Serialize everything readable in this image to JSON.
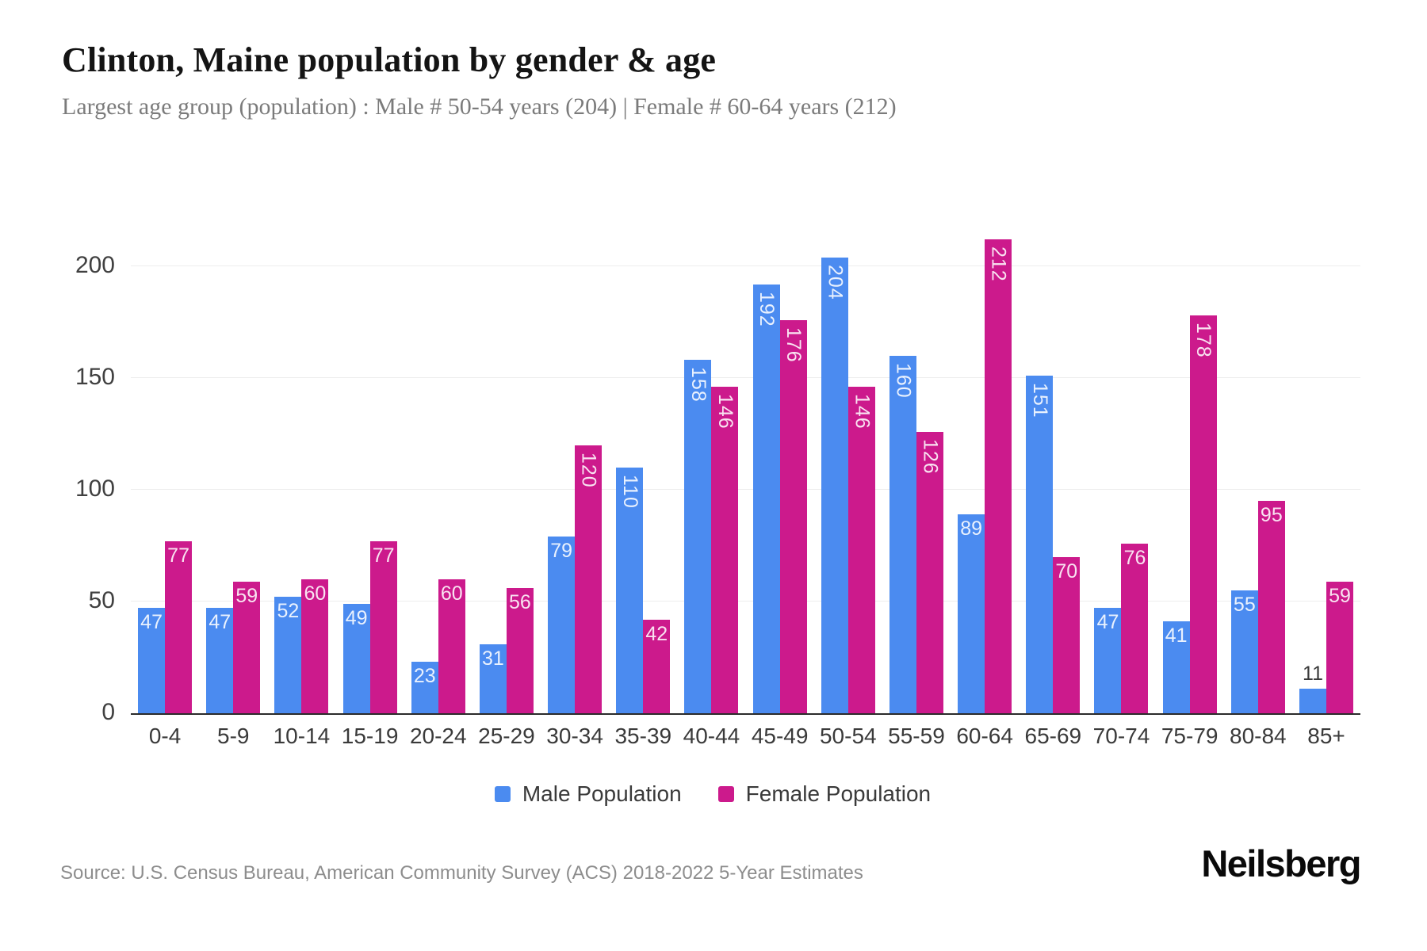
{
  "header": {
    "title": "Clinton, Maine population by gender & age",
    "subtitle": "Largest age group (population) : Male # 50-54 years (204) | Female # 60-64 years (212)"
  },
  "footer": {
    "source": "Source: U.S. Census Bureau, American Community Survey (ACS) 2018-2022 5-Year Estimates",
    "logo": "Neilsberg"
  },
  "colors": {
    "male": "#4b8bf0",
    "female": "#cc1a8c",
    "axis_line": "#2b2b2b",
    "gridline": "#ededed",
    "bar_label_light": "rgba(255,255,255,0.88)",
    "bar_label_dark": "#3a3a3a"
  },
  "chart_data": {
    "type": "bar",
    "title": "Clinton, Maine population by gender & age",
    "xlabel": "",
    "ylabel": "",
    "categories": [
      "0-4",
      "5-9",
      "10-14",
      "15-19",
      "20-24",
      "25-29",
      "30-34",
      "35-39",
      "40-44",
      "45-49",
      "50-54",
      "55-59",
      "60-64",
      "65-69",
      "70-74",
      "75-79",
      "80-84",
      "85+"
    ],
    "series": [
      {
        "name": "Male Population",
        "key": "male",
        "color": "#4b8bf0",
        "values": [
          47,
          47,
          52,
          49,
          23,
          31,
          79,
          110,
          158,
          192,
          204,
          160,
          89,
          151,
          47,
          41,
          55,
          11
        ]
      },
      {
        "name": "Female Population",
        "key": "female",
        "color": "#cc1a8c",
        "values": [
          77,
          59,
          60,
          77,
          60,
          56,
          120,
          42,
          146,
          176,
          146,
          126,
          212,
          70,
          76,
          178,
          95,
          59
        ]
      }
    ],
    "yticks": [
      0,
      50,
      100,
      150,
      200
    ],
    "ylim": [
      0,
      221
    ],
    "grid": true,
    "legend_position": "bottom"
  }
}
